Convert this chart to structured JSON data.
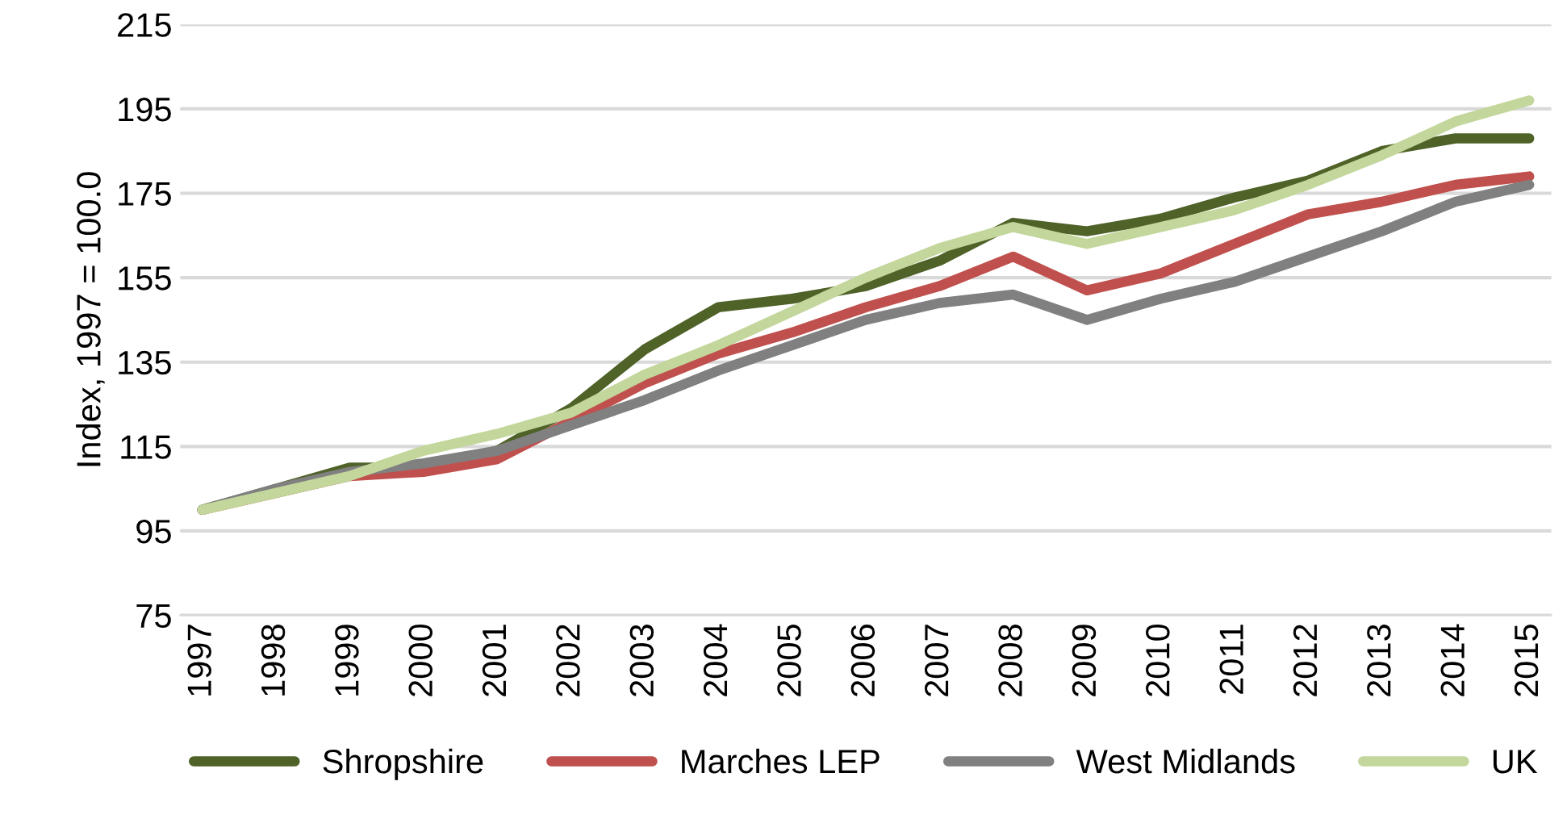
{
  "chart_data": {
    "type": "line",
    "ylabel": "Index, 1997 = 100.0",
    "categories": [
      "1997",
      "1998",
      "1999",
      "2000",
      "2001",
      "2002",
      "2003",
      "2004",
      "2005",
      "2006",
      "2007",
      "2008",
      "2009",
      "2010",
      "2011",
      "2012",
      "2013",
      "2014",
      "2015"
    ],
    "series": [
      {
        "name": "Shropshire",
        "color": "#4f6228",
        "values": [
          100,
          105,
          110,
          110,
          114,
          124,
          138,
          148,
          150,
          153,
          159,
          168,
          166,
          169,
          174,
          178,
          185,
          188,
          188
        ]
      },
      {
        "name": "Marches LEP",
        "color": "#c0504d",
        "values": [
          100,
          104,
          108,
          109,
          112,
          121,
          130,
          137,
          142,
          148,
          153,
          160,
          152,
          156,
          163,
          170,
          173,
          177,
          179
        ]
      },
      {
        "name": "West Midlands",
        "color": "#808080",
        "values": [
          100,
          105,
          109,
          111,
          114,
          120,
          126,
          133,
          139,
          145,
          149,
          151,
          145,
          150,
          154,
          160,
          166,
          173,
          177
        ]
      },
      {
        "name": "UK",
        "color": "#c3d69b",
        "values": [
          100,
          104,
          108,
          114,
          118,
          123,
          132,
          139,
          147,
          155,
          162,
          167,
          163,
          167,
          171,
          177,
          184,
          192,
          197
        ]
      }
    ],
    "ylim": [
      75,
      215
    ],
    "yticks": [
      75,
      95,
      115,
      135,
      155,
      175,
      195,
      215
    ],
    "grid": "y",
    "legend": "bottom",
    "marker": "none",
    "line_style": "solid"
  }
}
